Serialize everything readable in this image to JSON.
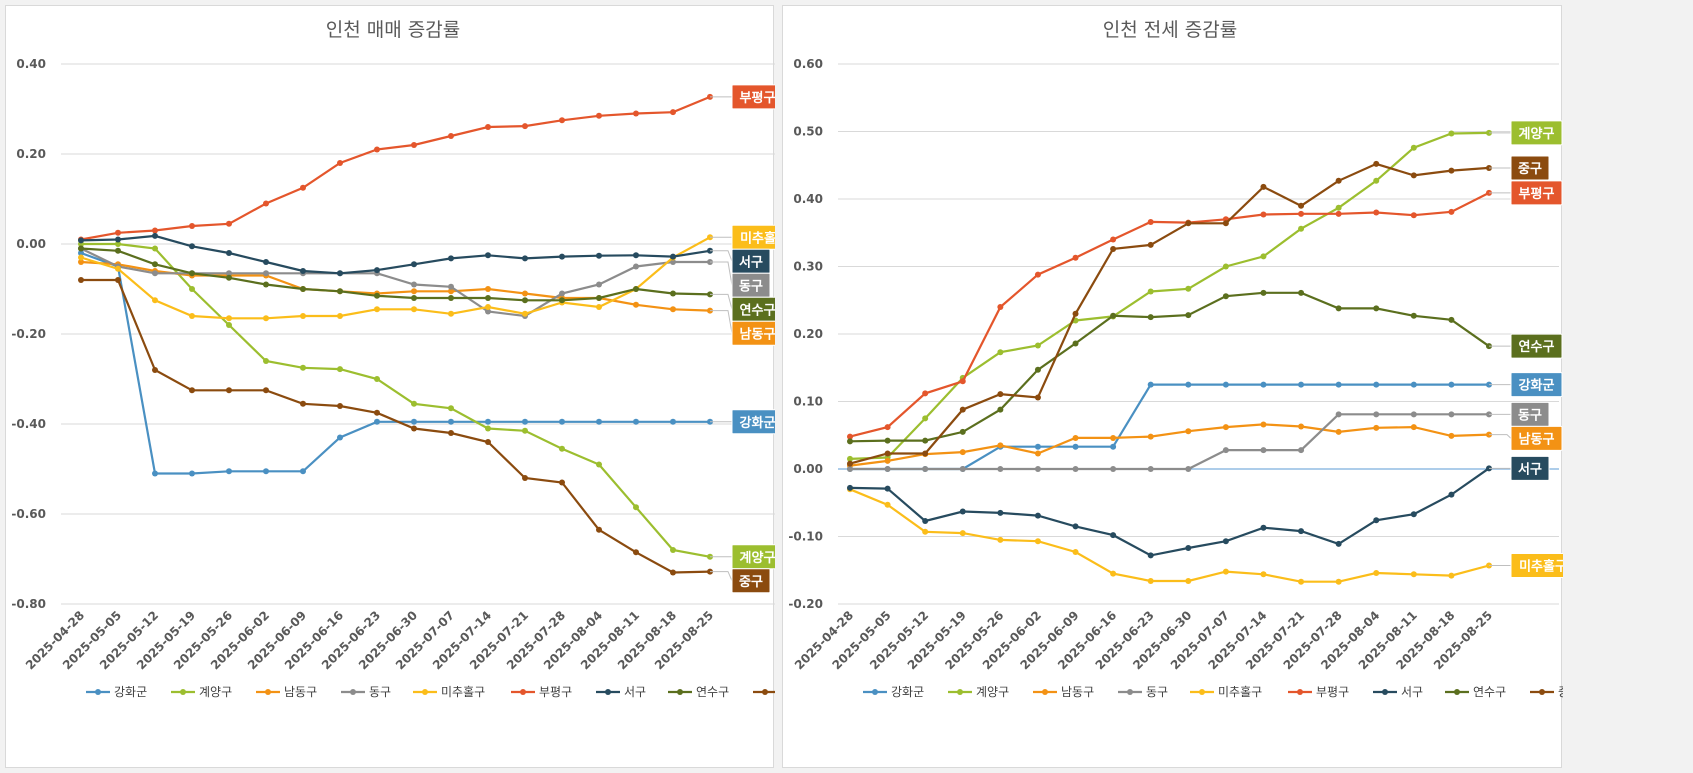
{
  "chart_data": [
    {
      "type": "line",
      "title": "인천 매매 증감률",
      "xlabel": "",
      "ylabel": "",
      "ylim": [
        -0.8,
        0.4
      ],
      "yticks": [
        "0.40",
        "0.20",
        "0.00",
        "-0.20",
        "-0.40",
        "-0.60",
        "-0.80"
      ],
      "grid": true,
      "legend": "bottom",
      "end_labels": true,
      "categories": [
        "2025-04-28",
        "2025-05-05",
        "2025-05-12",
        "2025-05-19",
        "2025-05-26",
        "2025-06-02",
        "2025-06-09",
        "2025-06-16",
        "2025-06-23",
        "2025-06-30",
        "2025-07-07",
        "2025-07-14",
        "2025-07-21",
        "2025-07-28",
        "2025-08-04",
        "2025-08-11",
        "2025-08-18",
        "2025-08-25"
      ],
      "series": [
        {
          "name": "강화군",
          "color": "#4a90c2",
          "values": [
            -0.02,
            -0.05,
            -0.51,
            -0.51,
            -0.505,
            -0.505,
            -0.505,
            -0.43,
            -0.395,
            -0.395,
            -0.395,
            -0.395,
            -0.395,
            -0.395,
            -0.395,
            -0.395,
            -0.395,
            -0.395
          ]
        },
        {
          "name": "계양구",
          "color": "#9cbe2f",
          "values": [
            0.0,
            0.0,
            -0.01,
            -0.1,
            -0.18,
            -0.26,
            -0.275,
            -0.278,
            -0.3,
            -0.355,
            -0.365,
            -0.41,
            -0.415,
            -0.455,
            -0.49,
            -0.585,
            -0.68,
            -0.695
          ]
        },
        {
          "name": "남동구",
          "color": "#f39214",
          "values": [
            -0.04,
            -0.045,
            -0.06,
            -0.07,
            -0.07,
            -0.07,
            -0.1,
            -0.105,
            -0.11,
            -0.105,
            -0.105,
            -0.1,
            -0.11,
            -0.12,
            -0.12,
            -0.135,
            -0.145,
            -0.148
          ]
        },
        {
          "name": "동구",
          "color": "#8c8c8c",
          "values": [
            -0.01,
            -0.05,
            -0.065,
            -0.065,
            -0.065,
            -0.065,
            -0.065,
            -0.065,
            -0.065,
            -0.09,
            -0.095,
            -0.15,
            -0.16,
            -0.11,
            -0.09,
            -0.05,
            -0.04,
            -0.04
          ]
        },
        {
          "name": "미추홀구",
          "color": "#fbbd1a",
          "values": [
            -0.03,
            -0.055,
            -0.125,
            -0.16,
            -0.165,
            -0.165,
            -0.16,
            -0.16,
            -0.145,
            -0.145,
            -0.155,
            -0.14,
            -0.155,
            -0.13,
            -0.14,
            -0.1,
            -0.03,
            0.015
          ]
        },
        {
          "name": "부평구",
          "color": "#e4562c",
          "values": [
            0.01,
            0.025,
            0.03,
            0.04,
            0.045,
            0.09,
            0.125,
            0.18,
            0.21,
            0.22,
            0.24,
            0.26,
            0.262,
            0.275,
            0.285,
            0.29,
            0.293,
            0.327
          ]
        },
        {
          "name": "서구",
          "color": "#274b5f",
          "values": [
            0.008,
            0.01,
            0.018,
            -0.005,
            -0.02,
            -0.04,
            -0.06,
            -0.065,
            -0.058,
            -0.045,
            -0.032,
            -0.025,
            -0.032,
            -0.028,
            -0.026,
            -0.025,
            -0.028,
            -0.015
          ]
        },
        {
          "name": "연수구",
          "color": "#5b6f1e",
          "values": [
            -0.01,
            -0.015,
            -0.045,
            -0.065,
            -0.075,
            -0.09,
            -0.1,
            -0.105,
            -0.115,
            -0.12,
            -0.12,
            -0.12,
            -0.125,
            -0.125,
            -0.12,
            -0.1,
            -0.11,
            -0.112
          ]
        },
        {
          "name": "중구",
          "color": "#8b4b0f",
          "values": [
            -0.08,
            -0.08,
            -0.28,
            -0.325,
            -0.325,
            -0.325,
            -0.355,
            -0.36,
            -0.375,
            -0.41,
            -0.42,
            -0.44,
            -0.52,
            -0.53,
            -0.635,
            -0.685,
            -0.73,
            -0.728
          ]
        }
      ]
    },
    {
      "type": "line",
      "title": "인천 전세 증감률",
      "xlabel": "",
      "ylabel": "",
      "ylim": [
        -0.2,
        0.6
      ],
      "yticks": [
        "0.60",
        "0.50",
        "0.40",
        "0.30",
        "0.20",
        "0.10",
        "0.00",
        "-0.10",
        "-0.20"
      ],
      "grid": true,
      "legend": "bottom",
      "end_labels": true,
      "categories": [
        "2025-04-28",
        "2025-05-05",
        "2025-05-12",
        "2025-05-19",
        "2025-05-26",
        "2025-06-02",
        "2025-06-09",
        "2025-06-16",
        "2025-06-23",
        "2025-06-30",
        "2025-07-07",
        "2025-07-14",
        "2025-07-21",
        "2025-07-28",
        "2025-08-04",
        "2025-08-11",
        "2025-08-18",
        "2025-08-25"
      ],
      "series": [
        {
          "name": "강화군",
          "color": "#4a90c2",
          "values": [
            0.0,
            0.0,
            0.0,
            0.0,
            0.033,
            0.033,
            0.033,
            0.033,
            0.125,
            0.125,
            0.125,
            0.125,
            0.125,
            0.125,
            0.125,
            0.125,
            0.125,
            0.125
          ]
        },
        {
          "name": "계양구",
          "color": "#9cbe2f",
          "values": [
            0.015,
            0.017,
            0.075,
            0.135,
            0.173,
            0.183,
            0.22,
            0.226,
            0.263,
            0.267,
            0.3,
            0.315,
            0.356,
            0.387,
            0.427,
            0.476,
            0.497,
            0.498
          ]
        },
        {
          "name": "남동구",
          "color": "#f39214",
          "values": [
            0.005,
            0.012,
            0.022,
            0.025,
            0.035,
            0.023,
            0.046,
            0.046,
            0.048,
            0.056,
            0.062,
            0.066,
            0.063,
            0.055,
            0.061,
            0.062,
            0.049,
            0.051
          ]
        },
        {
          "name": "동구",
          "color": "#8c8c8c",
          "values": [
            0.0,
            0.0,
            0.0,
            0.0,
            0.0,
            0.0,
            0.0,
            0.0,
            0.0,
            0.0,
            0.028,
            0.028,
            0.028,
            0.081,
            0.081,
            0.081,
            0.081,
            0.081
          ]
        },
        {
          "name": "미추홀구",
          "color": "#fbbd1a",
          "values": [
            -0.03,
            -0.053,
            -0.093,
            -0.095,
            -0.105,
            -0.107,
            -0.123,
            -0.155,
            -0.166,
            -0.166,
            -0.152,
            -0.156,
            -0.167,
            -0.167,
            -0.154,
            -0.156,
            -0.158,
            -0.143
          ]
        },
        {
          "name": "부평구",
          "color": "#e4562c",
          "values": [
            0.048,
            0.062,
            0.112,
            0.13,
            0.24,
            0.288,
            0.313,
            0.34,
            0.366,
            0.365,
            0.37,
            0.377,
            0.378,
            0.378,
            0.38,
            0.376,
            0.381,
            0.409
          ]
        },
        {
          "name": "서구",
          "color": "#274b5f",
          "values": [
            -0.028,
            -0.029,
            -0.077,
            -0.063,
            -0.065,
            -0.069,
            -0.085,
            -0.098,
            -0.128,
            -0.117,
            -0.107,
            -0.087,
            -0.092,
            -0.111,
            -0.076,
            -0.067,
            -0.038,
            0.001
          ]
        },
        {
          "name": "연수구",
          "color": "#5b6f1e",
          "values": [
            0.041,
            0.042,
            0.042,
            0.055,
            0.088,
            0.147,
            0.186,
            0.227,
            0.225,
            0.228,
            0.256,
            0.261,
            0.261,
            0.238,
            0.238,
            0.227,
            0.221,
            0.182
          ]
        },
        {
          "name": "중구",
          "color": "#8b4b0f",
          "values": [
            0.008,
            0.023,
            0.023,
            0.088,
            0.111,
            0.106,
            0.23,
            0.326,
            0.332,
            0.364,
            0.364,
            0.418,
            0.39,
            0.427,
            0.452,
            0.435,
            0.442,
            0.446
          ]
        }
      ]
    }
  ]
}
